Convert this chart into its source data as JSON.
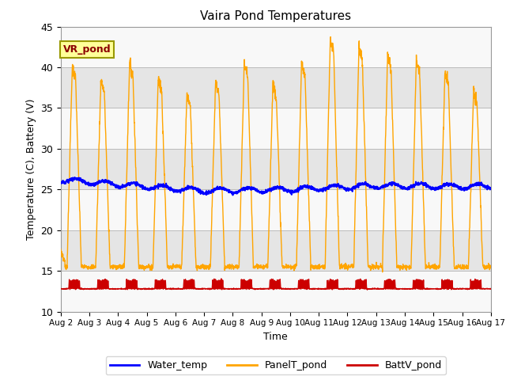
{
  "title": "Vaira Pond Temperatures",
  "xlabel": "Time",
  "ylabel": "Temperature (C), Battery (V)",
  "ylim": [
    10,
    45
  ],
  "annotation": "VR_pond",
  "annotation_bg": "#FFFF99",
  "annotation_border": "#999900",
  "legend_labels": [
    "Water_temp",
    "PanelT_pond",
    "BattV_pond"
  ],
  "legend_colors": [
    "#0000FF",
    "#FFA500",
    "#CC0000"
  ],
  "water_color": "#0000FF",
  "panel_color": "#FFA500",
  "batt_color": "#CC0000",
  "plot_bg": "#F0F0F0",
  "fig_bg": "#FFFFFF",
  "tick_labels": [
    "Aug 2",
    "Aug 3",
    "Aug 4",
    "Aug 5",
    "Aug 6",
    "Aug 7",
    "Aug 8",
    "Aug 9",
    "Aug 10",
    "Aug 11",
    "Aug 12",
    "Aug 13",
    "Aug 14",
    "Aug 15",
    "Aug 16",
    "Aug 17"
  ],
  "num_days": 15,
  "panel_peaks": [
    40.0,
    38.5,
    40.5,
    38.7,
    36.7,
    38.2,
    40.5,
    38.0,
    40.5,
    43.5,
    42.5,
    41.5,
    40.8,
    39.5,
    37.0
  ],
  "panel_night": 15.5,
  "water_base": 25.5,
  "batt_base": 12.8
}
